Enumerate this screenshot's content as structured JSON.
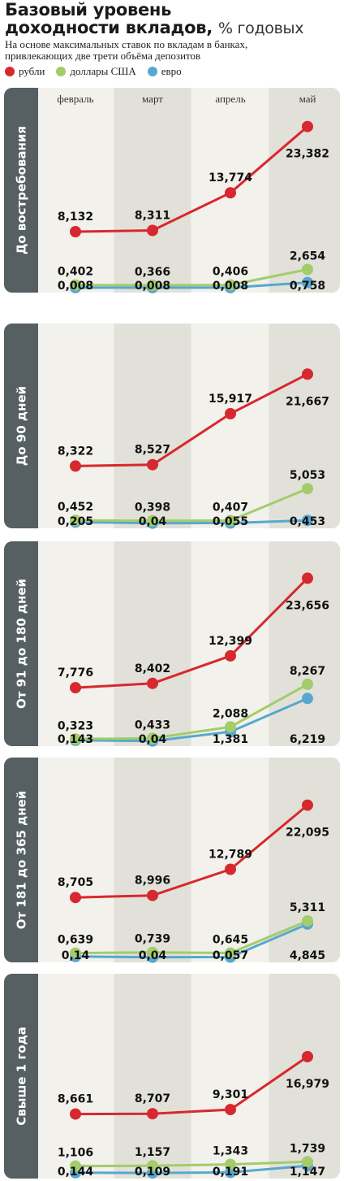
{
  "header": {
    "title_line1": "Базовый уровень",
    "title_line2": "доходности вкладов,",
    "title_unit": "% годовых",
    "subtitle_line1": "На основе максимальных ставок по вкладам в банках,",
    "subtitle_line2": "привлекающих две трети объёма депозитов"
  },
  "legend": [
    {
      "name": "рубли",
      "color": "#d7282f"
    },
    {
      "name": "доллары США",
      "color": "#a3cc6a"
    },
    {
      "name": "евро",
      "color": "#56a8d0"
    }
  ],
  "chart_data": [
    {
      "type": "line",
      "title": "До востребования",
      "categories": [
        "февраль",
        "март",
        "апрель",
        "май"
      ],
      "series": [
        {
          "name": "рубли",
          "values": [
            8.132,
            8.311,
            13.774,
            23.382
          ],
          "labels": [
            "8,132",
            "8,311",
            "13,774",
            "23,382"
          ]
        },
        {
          "name": "доллары США",
          "values": [
            0.402,
            0.366,
            0.406,
            2.654
          ],
          "labels": [
            "0,402",
            "0,366",
            "0,406",
            "2,654"
          ]
        },
        {
          "name": "евро",
          "values": [
            0.008,
            0.008,
            0.008,
            0.758
          ],
          "labels": [
            "0,008",
            "0,008",
            "0,008",
            "0,758"
          ]
        }
      ]
    },
    {
      "type": "line",
      "title": "До 90 дней",
      "categories": [
        "февраль",
        "март",
        "апрель",
        "май"
      ],
      "series": [
        {
          "name": "рубли",
          "values": [
            8.322,
            8.527,
            15.917,
            21.667
          ],
          "labels": [
            "8,322",
            "8,527",
            "15,917",
            "21,667"
          ]
        },
        {
          "name": "доллары США",
          "values": [
            0.452,
            0.398,
            0.407,
            5.053
          ],
          "labels": [
            "0,452",
            "0,398",
            "0,407",
            "5,053"
          ]
        },
        {
          "name": "евро",
          "values": [
            0.205,
            0.04,
            0.055,
            0.453
          ],
          "labels": [
            "0,205",
            "0,04",
            "0,055",
            "0,453"
          ]
        }
      ]
    },
    {
      "type": "line",
      "title": "От 91 до 180 дней",
      "categories": [
        "февраль",
        "март",
        "апрель",
        "май"
      ],
      "series": [
        {
          "name": "рубли",
          "values": [
            7.776,
            8.402,
            12.399,
            23.656
          ],
          "labels": [
            "7,776",
            "8,402",
            "12,399",
            "23,656"
          ]
        },
        {
          "name": "доллары США",
          "values": [
            0.323,
            0.433,
            2.088,
            8.267
          ],
          "labels": [
            "0,323",
            "0,433",
            "2,088",
            "8,267"
          ]
        },
        {
          "name": "евро",
          "values": [
            0.143,
            0.04,
            1.381,
            6.219
          ],
          "labels": [
            "0,143",
            "0,04",
            "1,381",
            "6,219"
          ]
        }
      ]
    },
    {
      "type": "line",
      "title": "От 181 до 365 дней",
      "categories": [
        "февраль",
        "март",
        "апрель",
        "май"
      ],
      "series": [
        {
          "name": "рубли",
          "values": [
            8.705,
            8.996,
            12.789,
            22.095
          ],
          "labels": [
            "8,705",
            "8,996",
            "12,789",
            "22,095"
          ]
        },
        {
          "name": "доллары США",
          "values": [
            0.639,
            0.739,
            0.645,
            5.311
          ],
          "labels": [
            "0,639",
            "0,739",
            "0,645",
            "5,311"
          ]
        },
        {
          "name": "евро",
          "values": [
            0.14,
            0.04,
            0.057,
            4.845
          ],
          "labels": [
            "0,14",
            "0,04",
            "0,057",
            "4,845"
          ]
        }
      ]
    },
    {
      "type": "line",
      "title": "Свыше 1 года",
      "categories": [
        "февраль",
        "март",
        "апрель",
        "май"
      ],
      "series": [
        {
          "name": "рубли",
          "values": [
            8.661,
            8.707,
            9.301,
            16.979
          ],
          "labels": [
            "8,661",
            "8,707",
            "9,301",
            "16,979"
          ]
        },
        {
          "name": "доллары США",
          "values": [
            1.106,
            1.157,
            1.343,
            1.739
          ],
          "labels": [
            "1,106",
            "1,157",
            "1,343",
            "1,739"
          ]
        },
        {
          "name": "евро",
          "values": [
            0.144,
            0.109,
            0.191,
            1.147
          ],
          "labels": [
            "0,144",
            "0,109",
            "0,191",
            "1,147"
          ]
        }
      ]
    }
  ]
}
